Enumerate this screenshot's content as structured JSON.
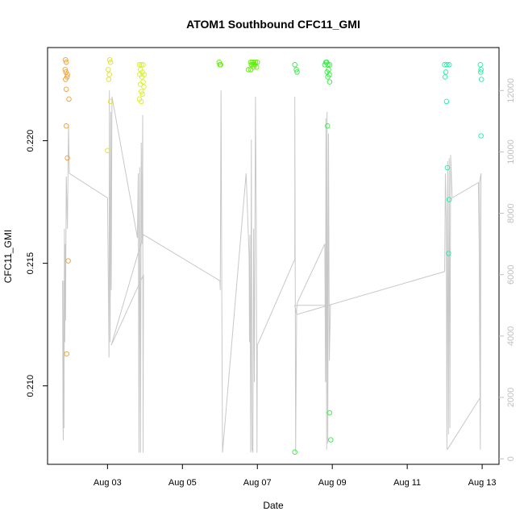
{
  "chart_data": {
    "type": "scatter",
    "title": "ATOM1 Southbound CFC11_GMI",
    "xlabel": "Date",
    "ylabel": "CFC11_GMI",
    "x_ticks": [
      "Aug 03",
      "Aug 05",
      "Aug 07",
      "Aug 09",
      "Aug 11",
      "Aug 13"
    ],
    "x_tick_days": [
      3,
      5,
      7,
      9,
      11,
      13
    ],
    "xlim_days": [
      1.4,
      13.45
    ],
    "ylim": [
      0.2068,
      0.2238
    ],
    "y_ticks": [
      0.21,
      0.215,
      0.22
    ],
    "y_tick_labels": [
      "0.210",
      "0.215",
      "0.220"
    ],
    "y2lim": [
      -180,
      13400
    ],
    "y2_ticks": [
      0,
      2000,
      4000,
      6000,
      8000,
      10000,
      12000
    ],
    "y2_tick_labels": [
      "0",
      "2000",
      "4000",
      "6000",
      "8000",
      "10000",
      "12000"
    ],
    "grid": false,
    "colors": {
      "altitude_line": "#c8c8c8",
      "right_axis": "#bfbfbf"
    },
    "series": [
      {
        "color": "#f0a030",
        "points": [
          [
            1.88,
            0.2233
          ],
          [
            1.9,
            0.2232
          ],
          [
            1.87,
            0.2229
          ],
          [
            1.89,
            0.2228
          ],
          [
            1.93,
            0.2227
          ],
          [
            1.92,
            0.2226
          ],
          [
            1.88,
            0.2225
          ],
          [
            1.9,
            0.2221
          ],
          [
            1.97,
            0.2217
          ],
          [
            1.9,
            0.2206
          ],
          [
            1.93,
            0.2193
          ],
          [
            1.95,
            0.2151
          ],
          [
            1.91,
            0.2113
          ]
        ]
      },
      {
        "color": "#e0e030",
        "points": [
          [
            3.06,
            0.2233
          ],
          [
            3.08,
            0.2232
          ],
          [
            3.02,
            0.2229
          ],
          [
            3.05,
            0.2227
          ],
          [
            3.03,
            0.2225
          ],
          [
            3.08,
            0.2216
          ],
          [
            3.0,
            0.2196
          ]
        ]
      },
      {
        "color": "#d8f028",
        "points": [
          [
            3.85,
            0.2231
          ],
          [
            3.9,
            0.2231
          ],
          [
            3.95,
            0.2231
          ],
          [
            3.88,
            0.2229
          ],
          [
            3.93,
            0.2228
          ],
          [
            3.86,
            0.2227
          ],
          [
            3.98,
            0.2227
          ],
          [
            3.92,
            0.2226
          ],
          [
            3.95,
            0.2224
          ],
          [
            3.88,
            0.2223
          ],
          [
            3.97,
            0.2222
          ],
          [
            3.9,
            0.222
          ],
          [
            3.93,
            0.2219
          ],
          [
            3.85,
            0.2217
          ],
          [
            3.9,
            0.2216
          ]
        ]
      },
      {
        "color": "#60f000",
        "points": [
          [
            5.98,
            0.2232
          ],
          [
            6.02,
            0.2231
          ],
          [
            6.0,
            0.2231
          ],
          [
            6.82,
            0.2232
          ],
          [
            6.86,
            0.2232
          ],
          [
            6.9,
            0.2232
          ],
          [
            6.95,
            0.2232
          ],
          [
            7.0,
            0.2232
          ],
          [
            6.84,
            0.2231
          ],
          [
            6.88,
            0.2231
          ],
          [
            6.93,
            0.2231
          ],
          [
            6.98,
            0.223
          ],
          [
            6.82,
            0.2229
          ],
          [
            6.9,
            0.223
          ],
          [
            6.76,
            0.2229
          ]
        ]
      },
      {
        "color": "#30f040",
        "points": [
          [
            8.0,
            0.2231
          ],
          [
            8.04,
            0.2229
          ],
          [
            8.06,
            0.2228
          ],
          [
            8.83,
            0.2232
          ],
          [
            8.85,
            0.2232
          ],
          [
            8.88,
            0.2231
          ],
          [
            8.93,
            0.2231
          ],
          [
            8.8,
            0.2231
          ],
          [
            8.9,
            0.2229
          ],
          [
            8.86,
            0.2228
          ],
          [
            8.92,
            0.2227
          ],
          [
            8.88,
            0.2226
          ],
          [
            8.93,
            0.2224
          ],
          [
            8.87,
            0.2206
          ],
          [
            8.93,
            0.2089
          ],
          [
            8.96,
            0.2078
          ],
          [
            8.0,
            0.2073
          ]
        ]
      },
      {
        "color": "#20f0a0",
        "points": [
          [
            12.0,
            0.2231
          ],
          [
            12.06,
            0.2231
          ],
          [
            12.12,
            0.2231
          ],
          [
            12.03,
            0.2228
          ],
          [
            12.01,
            0.2226
          ],
          [
            12.05,
            0.2216
          ],
          [
            12.07,
            0.2189
          ],
          [
            12.12,
            0.2176
          ],
          [
            12.1,
            0.2154
          ],
          [
            12.95,
            0.2231
          ],
          [
            12.97,
            0.2229
          ],
          [
            12.96,
            0.2228
          ],
          [
            12.98,
            0.2225
          ],
          [
            12.97,
            0.2202
          ]
        ]
      }
    ],
    "altitude_line": {
      "axis": "right",
      "points": [
        [
          1.8,
          5800
        ],
        [
          1.81,
          1300
        ],
        [
          1.82,
          600
        ],
        [
          1.83,
          5800
        ],
        [
          1.84,
          1000
        ],
        [
          1.85,
          7500
        ],
        [
          1.86,
          3800
        ],
        [
          1.87,
          7000
        ],
        [
          1.88,
          4500
        ],
        [
          1.9,
          9200
        ],
        [
          1.93,
          7500
        ],
        [
          1.96,
          10900
        ],
        [
          1.98,
          9300
        ],
        [
          3.0,
          8500
        ],
        [
          3.04,
          3300
        ],
        [
          3.05,
          12000
        ],
        [
          3.07,
          3800
        ],
        [
          3.09,
          11300
        ],
        [
          3.1,
          5500
        ],
        [
          3.12,
          11800
        ],
        [
          3.8,
          7200
        ],
        [
          3.82,
          9300
        ],
        [
          3.84,
          200
        ],
        [
          3.86,
          9500
        ],
        [
          3.88,
          200
        ],
        [
          3.9,
          10300
        ],
        [
          3.92,
          7000
        ],
        [
          3.94,
          11200
        ],
        [
          3.95,
          200
        ],
        [
          3.96,
          6000
        ],
        [
          3.1,
          3700
        ],
        [
          3.96,
          7300
        ],
        [
          6.0,
          5800
        ],
        [
          6.01,
          5500
        ],
        [
          6.03,
          12000
        ],
        [
          6.05,
          5500
        ],
        [
          6.07,
          200
        ],
        [
          6.7,
          9300
        ],
        [
          6.78,
          6600
        ],
        [
          6.79,
          3800
        ],
        [
          6.8,
          7300
        ],
        [
          6.82,
          200
        ],
        [
          6.84,
          10400
        ],
        [
          6.86,
          300
        ],
        [
          6.88,
          200
        ],
        [
          6.9,
          7500
        ],
        [
          6.92,
          2500
        ],
        [
          6.95,
          11800
        ],
        [
          6.97,
          7800
        ],
        [
          6.99,
          200
        ],
        [
          7.0,
          3700
        ],
        [
          8.0,
          6500
        ],
        [
          8.0,
          11800
        ],
        [
          8.02,
          200
        ],
        [
          8.05,
          4900
        ],
        [
          8.07,
          5100
        ],
        [
          8.8,
          7000
        ],
        [
          8.82,
          2500
        ],
        [
          8.83,
          11100
        ],
        [
          8.85,
          300
        ],
        [
          8.86,
          11300
        ],
        [
          8.88,
          500
        ],
        [
          8.9,
          10600
        ],
        [
          8.92,
          3200
        ],
        [
          8.95,
          5000
        ],
        [
          8.0,
          5000
        ],
        [
          8.05,
          4700
        ],
        [
          12.0,
          6100
        ],
        [
          12.02,
          9300
        ],
        [
          12.04,
          7800
        ],
        [
          12.06,
          300
        ],
        [
          12.08,
          9700
        ],
        [
          12.1,
          800
        ],
        [
          12.12,
          9800
        ],
        [
          12.14,
          1000
        ],
        [
          12.16,
          9900
        ],
        [
          12.2,
          8500
        ],
        [
          12.9,
          9000
        ],
        [
          12.92,
          7000
        ],
        [
          12.95,
          300
        ],
        [
          12.97,
          9300
        ],
        [
          12.93,
          9000
        ],
        [
          12.95,
          2000
        ],
        [
          12.07,
          300
        ]
      ]
    }
  }
}
